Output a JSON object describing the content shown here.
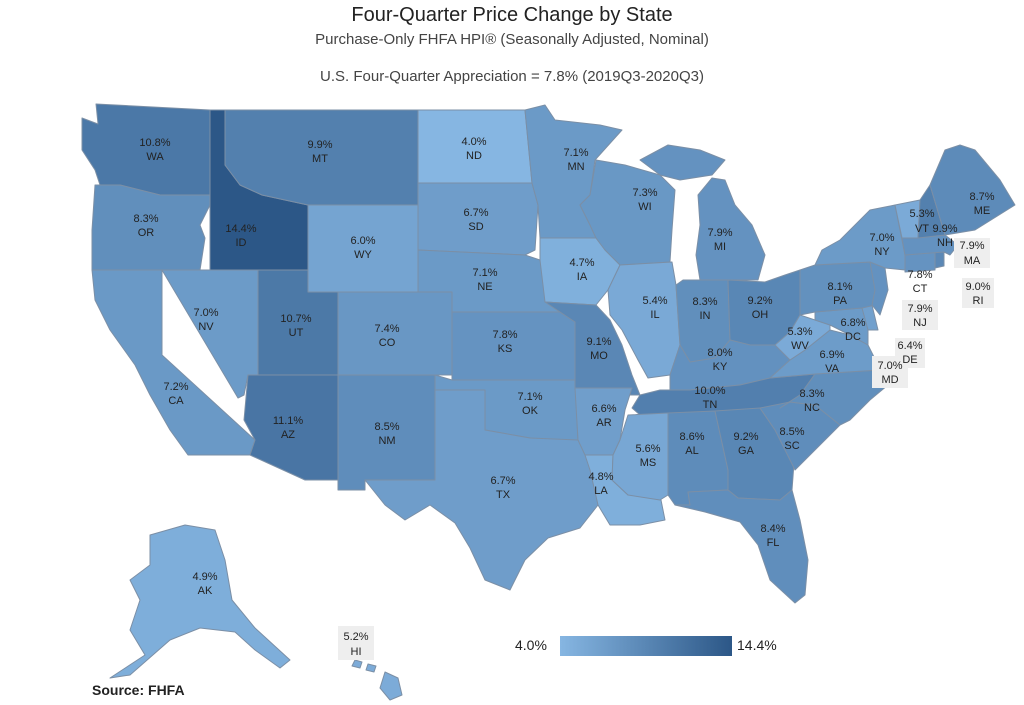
{
  "header": {
    "title": "Four-Quarter Price Change by State",
    "subtitle": "Purchase-Only FHFA HPI® (Seasonally Adjusted, Nominal)",
    "us_appreciation": "U.S. Four-Quarter Appreciation = 7.8% (2019Q3-2020Q3)"
  },
  "legend": {
    "min_label": "4.0%",
    "max_label": "14.4%",
    "min_value": 4.0,
    "max_value": 14.4,
    "color_min": "#86b6e2",
    "color_max": "#2c5787"
  },
  "source": "Source:  FHFA",
  "states": {
    "WA": {
      "abbr": "WA",
      "value": 10.8,
      "label": "10.8%"
    },
    "OR": {
      "abbr": "OR",
      "value": 8.3,
      "label": "8.3%"
    },
    "CA": {
      "abbr": "CA",
      "value": 7.2,
      "label": "7.2%"
    },
    "NV": {
      "abbr": "NV",
      "value": 7.0,
      "label": "7.0%"
    },
    "ID": {
      "abbr": "ID",
      "value": 14.4,
      "label": "14.4%"
    },
    "MT": {
      "abbr": "MT",
      "value": 9.9,
      "label": "9.9%"
    },
    "WY": {
      "abbr": "WY",
      "value": 6.0,
      "label": "6.0%"
    },
    "UT": {
      "abbr": "UT",
      "value": 10.7,
      "label": "10.7%"
    },
    "AZ": {
      "abbr": "AZ",
      "value": 11.1,
      "label": "11.1%"
    },
    "CO": {
      "abbr": "CO",
      "value": 7.4,
      "label": "7.4%"
    },
    "NM": {
      "abbr": "NM",
      "value": 8.5,
      "label": "8.5%"
    },
    "ND": {
      "abbr": "ND",
      "value": 4.0,
      "label": "4.0%"
    },
    "SD": {
      "abbr": "SD",
      "value": 6.7,
      "label": "6.7%"
    },
    "NE": {
      "abbr": "NE",
      "value": 7.1,
      "label": "7.1%"
    },
    "KS": {
      "abbr": "KS",
      "value": 7.8,
      "label": "7.8%"
    },
    "OK": {
      "abbr": "OK",
      "value": 7.1,
      "label": "7.1%"
    },
    "TX": {
      "abbr": "TX",
      "value": 6.7,
      "label": "6.7%"
    },
    "MN": {
      "abbr": "MN",
      "value": 7.1,
      "label": "7.1%"
    },
    "IA": {
      "abbr": "IA",
      "value": 4.7,
      "label": "4.7%"
    },
    "MO": {
      "abbr": "MO",
      "value": 9.1,
      "label": "9.1%"
    },
    "AR": {
      "abbr": "AR",
      "value": 6.6,
      "label": "6.6%"
    },
    "LA": {
      "abbr": "LA",
      "value": 4.8,
      "label": "4.8%"
    },
    "WI": {
      "abbr": "WI",
      "value": 7.3,
      "label": "7.3%"
    },
    "IL": {
      "abbr": "IL",
      "value": 5.4,
      "label": "5.4%"
    },
    "MI": {
      "abbr": "MI",
      "value": 7.9,
      "label": "7.9%"
    },
    "IN": {
      "abbr": "IN",
      "value": 8.3,
      "label": "8.3%"
    },
    "OH": {
      "abbr": "OH",
      "value": 9.2,
      "label": "9.2%"
    },
    "KY": {
      "abbr": "KY",
      "value": 8.0,
      "label": "8.0%"
    },
    "TN": {
      "abbr": "TN",
      "value": 10.0,
      "label": "10.0%"
    },
    "MS": {
      "abbr": "MS",
      "value": 5.6,
      "label": "5.6%"
    },
    "AL": {
      "abbr": "AL",
      "value": 8.6,
      "label": "8.6%"
    },
    "GA": {
      "abbr": "GA",
      "value": 9.2,
      "label": "9.2%"
    },
    "FL": {
      "abbr": "FL",
      "value": 8.4,
      "label": "8.4%"
    },
    "SC": {
      "abbr": "SC",
      "value": 8.5,
      "label": "8.5%"
    },
    "NC": {
      "abbr": "NC",
      "value": 8.3,
      "label": "8.3%"
    },
    "VA": {
      "abbr": "VA",
      "value": 6.9,
      "label": "6.9%"
    },
    "WV": {
      "abbr": "WV",
      "value": 5.3,
      "label": "5.3%"
    },
    "DC": {
      "abbr": "DC",
      "value": 6.8,
      "label": "6.8%"
    },
    "MD": {
      "abbr": "MD",
      "value": 7.0,
      "label": "7.0%"
    },
    "DE": {
      "abbr": "DE",
      "value": 6.4,
      "label": "6.4%"
    },
    "NJ": {
      "abbr": "NJ",
      "value": 7.9,
      "label": "7.9%"
    },
    "PA": {
      "abbr": "PA",
      "value": 8.1,
      "label": "8.1%"
    },
    "NY": {
      "abbr": "NY",
      "value": 7.0,
      "label": "7.0%"
    },
    "CT": {
      "abbr": "CT",
      "value": 7.8,
      "label": "7.8%"
    },
    "RI": {
      "abbr": "RI",
      "value": 9.0,
      "label": "9.0%"
    },
    "MA": {
      "abbr": "MA",
      "value": 7.9,
      "label": "7.9%"
    },
    "VT": {
      "abbr": "VT",
      "value": 5.3,
      "label": "5.3%"
    },
    "NH": {
      "abbr": "NH",
      "value": 9.9,
      "label": "9.9%"
    },
    "ME": {
      "abbr": "ME",
      "value": 8.7,
      "label": "8.7%"
    },
    "AK": {
      "abbr": "AK",
      "value": 4.9,
      "label": "4.9%"
    },
    "HI": {
      "abbr": "HI",
      "value": 5.2,
      "label": "5.2%"
    }
  }
}
